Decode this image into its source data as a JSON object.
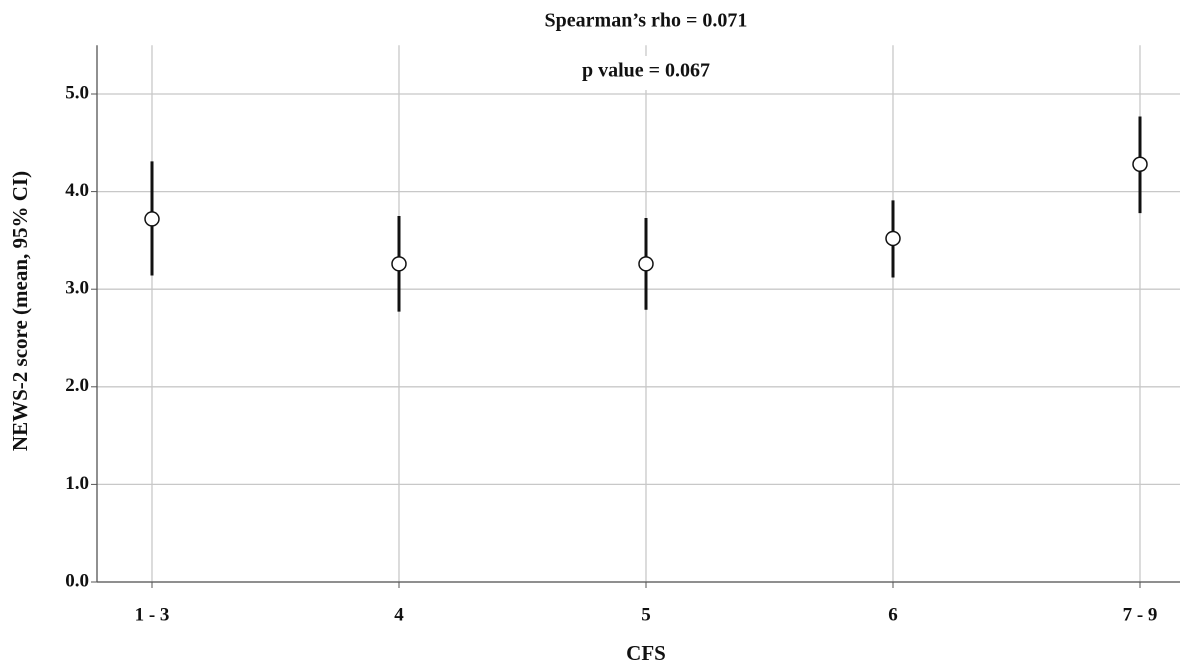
{
  "chart_data": {
    "type": "errorbar",
    "annotations": [
      "Spearman’s rho = 0.071",
      "p value = 0.067"
    ],
    "x_label": "CFS",
    "y_label": "NEWS-2 score (mean, 95% CI)",
    "categories": [
      "1 - 3",
      "4",
      "5",
      "6",
      "7 - 9"
    ],
    "values": [
      3.72,
      3.26,
      3.26,
      3.52,
      4.28
    ],
    "lower": [
      3.14,
      2.77,
      2.79,
      3.12,
      3.78
    ],
    "upper": [
      4.31,
      3.75,
      3.73,
      3.91,
      4.77
    ],
    "color": "#111111",
    "ylim": [
      0,
      5.5
    ],
    "yticks": [
      {
        "value": 0,
        "label": "0.0"
      },
      {
        "value": 1,
        "label": "1.0"
      },
      {
        "value": 2,
        "label": "2.0"
      },
      {
        "value": 3,
        "label": "3.0"
      },
      {
        "value": 4,
        "label": "4.0"
      },
      {
        "value": 5,
        "label": "5.0"
      }
    ],
    "grid": true
  }
}
